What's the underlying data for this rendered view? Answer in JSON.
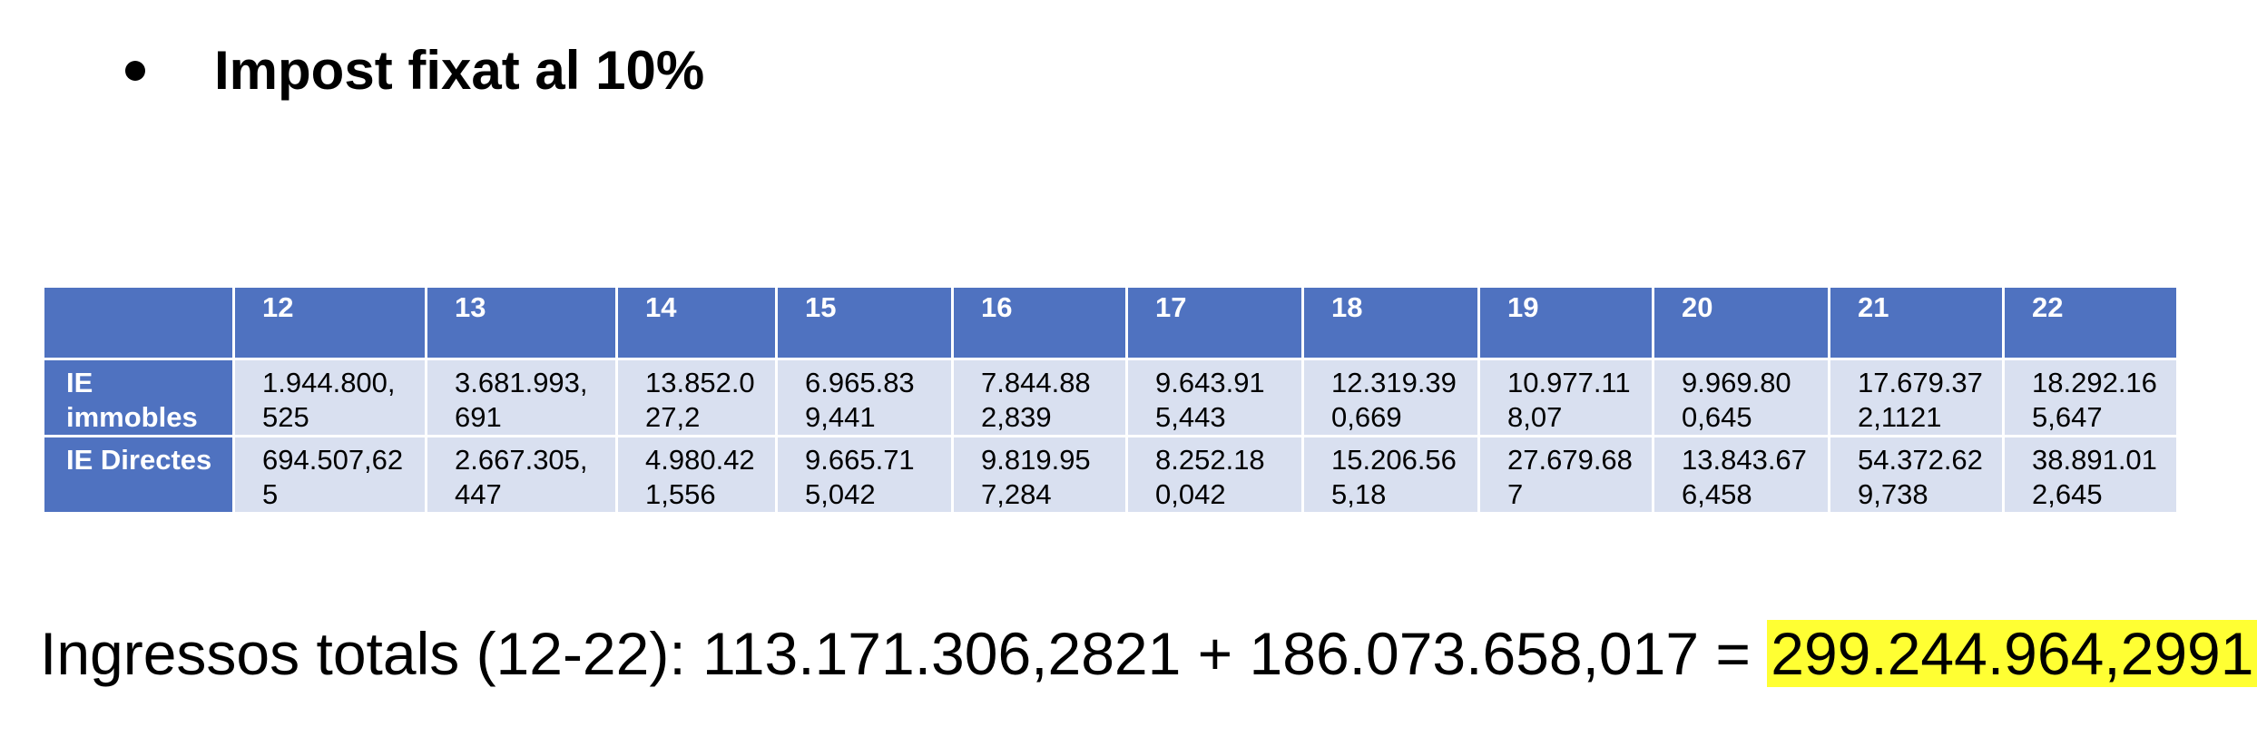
{
  "heading": {
    "text": "Impost fixat al 10%"
  },
  "table": {
    "columns": [
      "",
      "12",
      "13",
      "14",
      "15",
      "16",
      "17",
      "18",
      "19",
      "20",
      "21",
      "22"
    ],
    "rows": [
      {
        "label": "IE immobles",
        "values": [
          "1.944.800,525",
          "3.681.993,691",
          "13.852.027,2",
          "6.965.839,441",
          "7.844.882,839",
          "9.643.915,443",
          "12.319.390,669",
          "10.977.118,07",
          "9.969.800,645",
          "17.679.372,1121",
          "18.292.165,647"
        ]
      },
      {
        "label": "IE Directes",
        "values": [
          "694.507,625",
          "2.667.305,447",
          "4.980.421,556",
          "9.665.715,042",
          "9.819.957,284",
          "8.252.180,042",
          "15.206.565,18",
          "27.679.687",
          "13.843.676,458",
          "54.372.629,738",
          "38.891.012,645"
        ]
      }
    ]
  },
  "total": {
    "label": "Ingressos totals (12-22):",
    "addend1": "113.171.306,2821",
    "plus": "+",
    "addend2": "186.073.658,017",
    "equals": "=",
    "result": "299.244.964,2991",
    "highlight_color": "#ffff33"
  }
}
